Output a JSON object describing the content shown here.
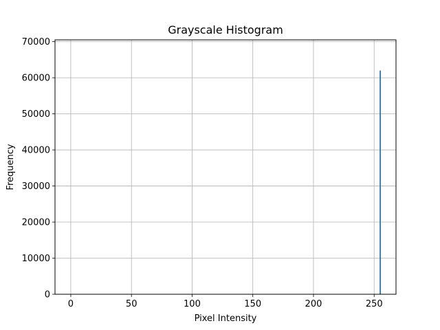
{
  "chart_data": {
    "type": "bar",
    "title": "Grayscale Histogram",
    "xlabel": "Pixel Intensity",
    "ylabel": "Frequency",
    "xlim": [
      -13,
      268
    ],
    "ylim": [
      0,
      70500
    ],
    "xticks": [
      0,
      50,
      100,
      150,
      200,
      250
    ],
    "xtick_labels": [
      "0",
      "50",
      "100",
      "150",
      "200",
      "250"
    ],
    "yticks": [
      0,
      10000,
      20000,
      30000,
      40000,
      50000,
      60000,
      70000
    ],
    "ytick_labels": [
      "0",
      "10000",
      "20000",
      "30000",
      "40000",
      "50000",
      "60000",
      "70000"
    ],
    "grid": true,
    "bins": 256,
    "series": [
      {
        "color": "#1f77b4",
        "x": [
          255
        ],
        "values": [
          62000
        ]
      }
    ]
  }
}
